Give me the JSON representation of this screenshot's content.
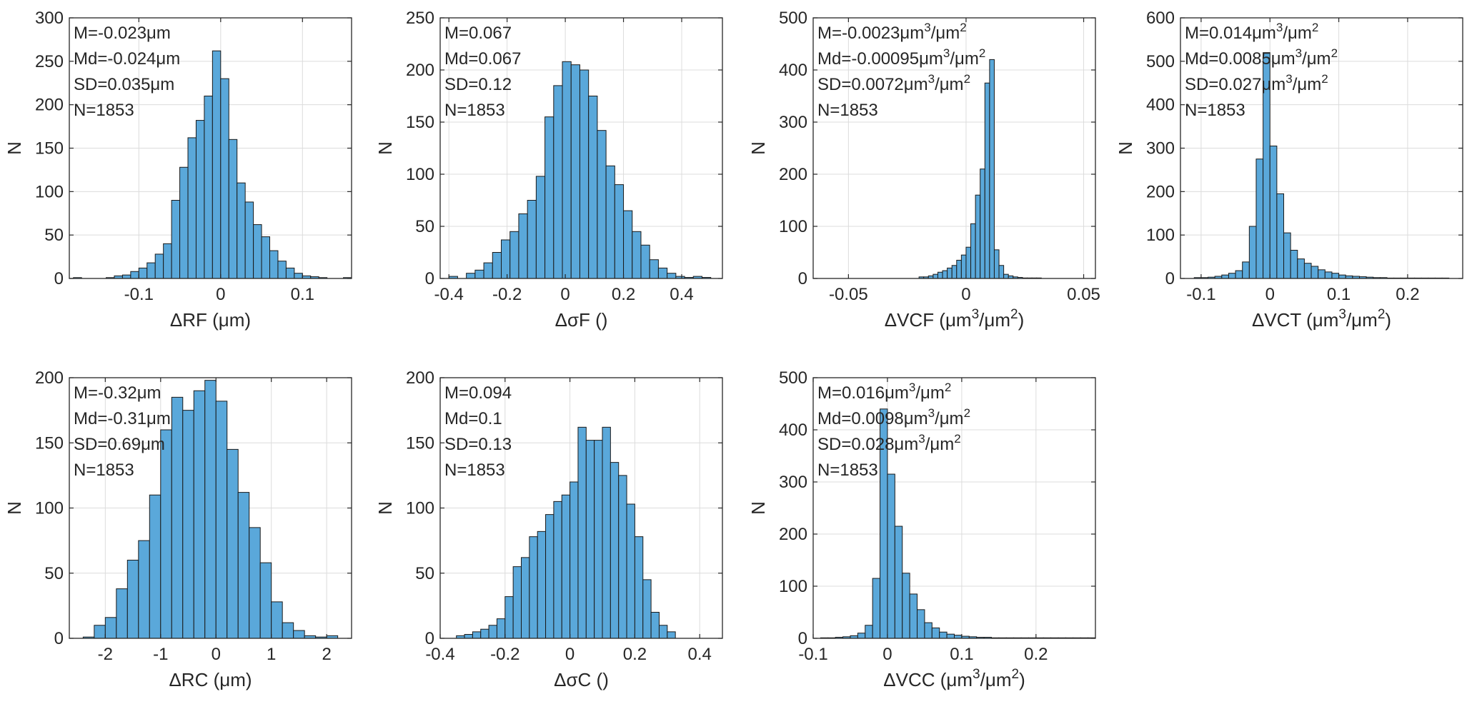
{
  "colors": {
    "bar_fill": "#5aa8da",
    "bar_edge": "#1a1a1a",
    "axis": "#262626",
    "grid": "#dcdcdc"
  },
  "chart_data": [
    {
      "type": "bar",
      "xlabel": "ΔRF (μm)",
      "ylabel": "N",
      "xlim": [
        -0.185,
        0.16
      ],
      "ylim": [
        0,
        300
      ],
      "xticks": [
        -0.1,
        0,
        0.1
      ],
      "xtick_labels": [
        "-0.1",
        "0",
        "0.1"
      ],
      "yticks": [
        0,
        50,
        100,
        150,
        200,
        250,
        300
      ],
      "grid": true,
      "annotations": [
        "M=-0.023μm",
        "Md=-0.024μm",
        "SD=0.035μm",
        "N=1853"
      ],
      "bin_start": -0.18,
      "bin_width": 0.01,
      "values": [
        1,
        0,
        0,
        0,
        1,
        3,
        4,
        8,
        12,
        18,
        28,
        40,
        90,
        128,
        162,
        182,
        210,
        262,
        230,
        160,
        110,
        88,
        62,
        48,
        32,
        20,
        12,
        6,
        3,
        2,
        1,
        0,
        0,
        1
      ]
    },
    {
      "type": "bar",
      "xlabel": "ΔσF ()",
      "ylabel": "N",
      "xlim": [
        -0.43,
        0.54
      ],
      "ylim": [
        0,
        250
      ],
      "xticks": [
        -0.4,
        -0.2,
        0,
        0.2,
        0.4
      ],
      "xtick_labels": [
        "-0.4",
        "-0.2",
        "0",
        "0.2",
        "0.4"
      ],
      "yticks": [
        0,
        50,
        100,
        150,
        200,
        250
      ],
      "grid": true,
      "annotations": [
        "M=0.067",
        "Md=0.067",
        "SD=0.12",
        "N=1853"
      ],
      "bin_start": -0.4,
      "bin_width": 0.03,
      "values": [
        2,
        0,
        5,
        8,
        15,
        25,
        37,
        45,
        62,
        75,
        98,
        155,
        185,
        208,
        205,
        200,
        175,
        142,
        108,
        90,
        65,
        45,
        32,
        18,
        10,
        5,
        2,
        1,
        2,
        1
      ]
    },
    {
      "type": "bar",
      "xlabel": "ΔVCF (μm3/μm2)",
      "ylabel": "N",
      "xlim": [
        -0.065,
        0.055
      ],
      "ylim": [
        0,
        500
      ],
      "xticks": [
        -0.05,
        0,
        0.05
      ],
      "xtick_labels": [
        "-0.05",
        "0",
        "0.05"
      ],
      "yticks": [
        0,
        100,
        200,
        300,
        400,
        500
      ],
      "grid": true,
      "annotations": [
        "M=-0.0023μm3/μm2",
        "Md=-0.00095μm3/μm2",
        "SD=0.0072μm3/μm2",
        "N=1853"
      ],
      "bin_start": -0.02,
      "bin_width": 0.002,
      "values": [
        3,
        3,
        5,
        8,
        12,
        15,
        20,
        25,
        35,
        45,
        60,
        105,
        160,
        210,
        375,
        420,
        55,
        25,
        8,
        5,
        3,
        2,
        1,
        1,
        1,
        1
      ]
    },
    {
      "type": "bar",
      "xlabel": "ΔVCT (μm3/μm2)",
      "ylabel": "N",
      "xlim": [
        -0.13,
        0.28
      ],
      "ylim": [
        0,
        600
      ],
      "xticks": [
        -0.1,
        0,
        0.1,
        0.2
      ],
      "xtick_labels": [
        "-0.1",
        "0",
        "0.1",
        "0.2"
      ],
      "yticks": [
        0,
        100,
        200,
        300,
        400,
        500,
        600
      ],
      "grid": true,
      "annotations": [
        "M=0.014μm3/μm2",
        "Md=0.0085μm3/μm2",
        "SD=0.027μm3/μm2",
        "N=1853"
      ],
      "bin_start": -0.11,
      "bin_width": 0.01,
      "values": [
        2,
        2,
        3,
        5,
        8,
        12,
        18,
        38,
        120,
        275,
        520,
        305,
        195,
        105,
        65,
        45,
        35,
        28,
        20,
        15,
        12,
        8,
        6,
        5,
        4,
        3,
        2,
        2,
        1,
        1,
        1,
        1,
        1,
        1,
        1,
        1,
        1
      ]
    },
    {
      "type": "bar",
      "xlabel": "ΔRC (μm)",
      "ylabel": "N",
      "xlim": [
        -2.65,
        2.45
      ],
      "ylim": [
        0,
        200
      ],
      "xticks": [
        -2,
        -1,
        0,
        1,
        2
      ],
      "xtick_labels": [
        "-2",
        "-1",
        "0",
        "1",
        "2"
      ],
      "yticks": [
        0,
        50,
        100,
        150,
        200
      ],
      "grid": true,
      "annotations": [
        "M=-0.32μm",
        "Md=-0.31μm",
        "SD=0.69μm",
        "N=1853"
      ],
      "bin_start": -2.4,
      "bin_width": 0.2,
      "values": [
        1,
        10,
        16,
        38,
        60,
        75,
        110,
        160,
        185,
        175,
        190,
        198,
        182,
        145,
        112,
        85,
        58,
        28,
        12,
        6,
        2,
        1,
        2
      ]
    },
    {
      "type": "bar",
      "xlabel": "ΔσC ()",
      "ylabel": "N",
      "xlim": [
        -0.4,
        0.47
      ],
      "ylim": [
        0,
        200
      ],
      "xticks": [
        -0.4,
        -0.2,
        0,
        0.2,
        0.4
      ],
      "xtick_labels": [
        "-0.4",
        "-0.2",
        "0",
        "0.2",
        "0.4"
      ],
      "yticks": [
        0,
        50,
        100,
        150,
        200
      ],
      "grid": true,
      "annotations": [
        "M=0.094",
        "Md=0.1",
        "SD=0.13",
        "N=1853"
      ],
      "bin_start": -0.35,
      "bin_width": 0.025,
      "values": [
        2,
        3,
        5,
        7,
        10,
        15,
        32,
        55,
        62,
        78,
        82,
        95,
        105,
        110,
        120,
        162,
        152,
        152,
        162,
        135,
        125,
        103,
        78,
        45,
        20,
        10,
        5
      ]
    },
    {
      "type": "bar",
      "xlabel": "ΔVCC (μm3/μm2)",
      "ylabel": "N",
      "xlim": [
        -0.1,
        0.28
      ],
      "ylim": [
        0,
        500
      ],
      "xticks": [
        -0.1,
        0,
        0.1,
        0.2
      ],
      "xtick_labels": [
        "-0.1",
        "0",
        "0.1",
        "0.2"
      ],
      "yticks": [
        0,
        100,
        200,
        300,
        400,
        500
      ],
      "grid": true,
      "annotations": [
        "M=0.016μm3/μm2",
        "Md=0.0098μm3/μm2",
        "SD=0.028μm3/μm2",
        "N=1853"
      ],
      "bin_start": -0.09,
      "bin_width": 0.01,
      "values": [
        1,
        1,
        2,
        3,
        5,
        10,
        25,
        115,
        440,
        315,
        215,
        125,
        85,
        55,
        30,
        20,
        12,
        8,
        6,
        4,
        3,
        2,
        2,
        1,
        1,
        1,
        1,
        1,
        1,
        1,
        1,
        1,
        1,
        1,
        1,
        1,
        1
      ]
    }
  ]
}
